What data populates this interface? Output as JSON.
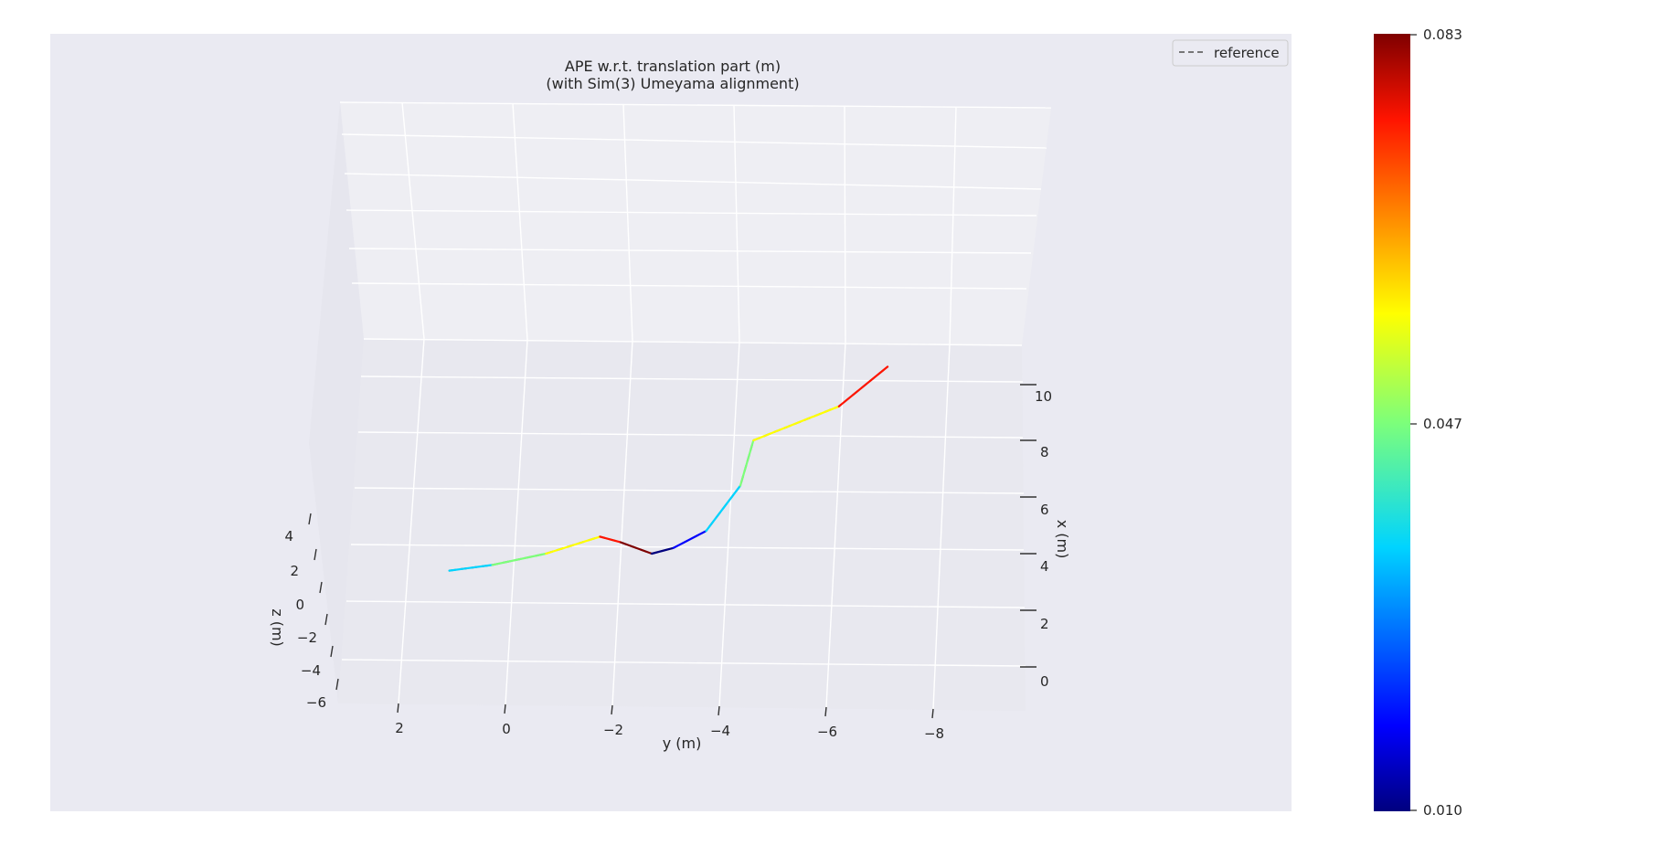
{
  "chart_data": {
    "type": "line",
    "title": "APE w.r.t. translation part (m)",
    "subtitle": "(with Sim(3) Umeyama alignment)",
    "xlabel": "y (m)",
    "ylabel": "x (m)",
    "zlabel": "z (m)",
    "projection": "3d",
    "grid": true,
    "legend": {
      "placement": "top-right",
      "entries": [
        {
          "label": "reference",
          "style": "dashed",
          "color": "#666666"
        }
      ]
    },
    "y_ticks": [
      "2",
      "0",
      "−2",
      "−4",
      "−6",
      "−8"
    ],
    "x_ticks": [
      "0",
      "2",
      "4",
      "6",
      "8",
      "10"
    ],
    "z_ticks": [
      "4",
      "2",
      "0",
      "−2",
      "−4",
      "−6"
    ],
    "colorbar": {
      "colormap": "jet",
      "min": 0.01,
      "max": 0.083,
      "tick_labels": [
        "0.083",
        "0.047",
        "0.010"
      ]
    },
    "series": [
      {
        "name": "reference",
        "style": "dashed",
        "color": "#666666",
        "points": [
          {
            "x": 3.4,
            "y": 1.2,
            "z": 0.0
          },
          {
            "x": 3.6,
            "y": 0.4,
            "z": 0.0
          },
          {
            "x": 4.0,
            "y": -0.6,
            "z": 0.0
          },
          {
            "x": 4.6,
            "y": -1.6,
            "z": 0.0
          },
          {
            "x": 4.4,
            "y": -2.0,
            "z": 0.0
          },
          {
            "x": 4.0,
            "y": -2.6,
            "z": 0.0
          },
          {
            "x": 4.2,
            "y": -3.0,
            "z": 0.0
          },
          {
            "x": 4.8,
            "y": -3.6,
            "z": 0.0
          },
          {
            "x": 6.4,
            "y": -4.2,
            "z": 0.0
          },
          {
            "x": 8.0,
            "y": -4.4,
            "z": 0.0
          },
          {
            "x": 9.2,
            "y": -6.0,
            "z": 0.0
          },
          {
            "x": 10.6,
            "y": -6.9,
            "z": 0.0
          }
        ]
      },
      {
        "name": "",
        "style": "colormapped",
        "color": "#ff8c00",
        "points": [
          {
            "x": 3.4,
            "y": 1.2,
            "z": 0.0
          },
          {
            "x": 3.6,
            "y": 0.4,
            "z": 0.0
          },
          {
            "x": 4.0,
            "y": -0.6,
            "z": 0.0
          },
          {
            "x": 4.6,
            "y": -1.6,
            "z": 0.0
          },
          {
            "x": 4.4,
            "y": -2.0,
            "z": 0.0
          },
          {
            "x": 4.0,
            "y": -2.6,
            "z": 0.0
          },
          {
            "x": 4.2,
            "y": -3.0,
            "z": 0.0
          },
          {
            "x": 4.8,
            "y": -3.6,
            "z": 0.0
          },
          {
            "x": 6.4,
            "y": -4.2,
            "z": 0.0
          },
          {
            "x": 8.0,
            "y": -4.4,
            "z": 0.0
          },
          {
            "x": 9.2,
            "y": -6.0,
            "z": 0.0
          },
          {
            "x": 10.6,
            "y": -6.9,
            "z": 0.0
          }
        ]
      }
    ]
  }
}
